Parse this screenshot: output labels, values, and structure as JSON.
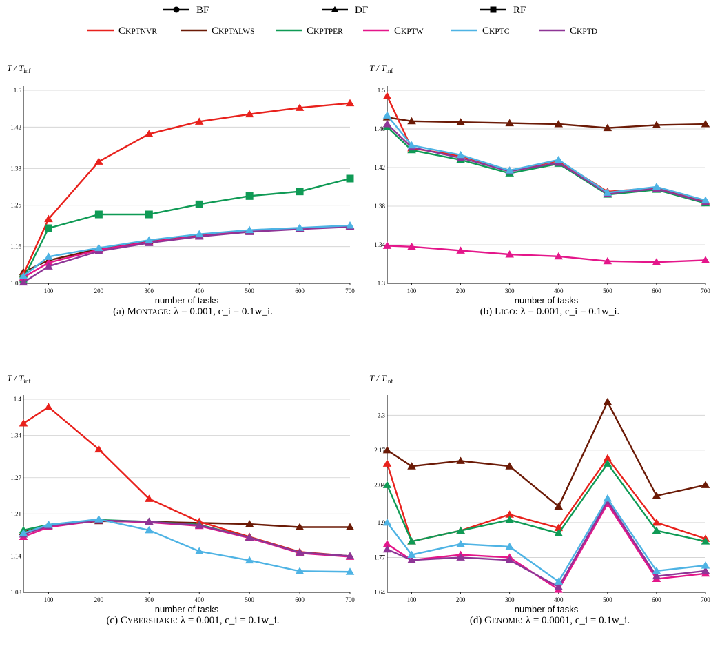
{
  "legend": {
    "markers": [
      {
        "name": "BF",
        "marker": "circle"
      },
      {
        "name": "DF",
        "marker": "triangle"
      },
      {
        "name": "RF",
        "marker": "square"
      }
    ],
    "colors": [
      {
        "name": "CkptNvr",
        "color": "#e8211c"
      },
      {
        "name": "CkptAlws",
        "color": "#6b1a06"
      },
      {
        "name": "CkptPer",
        "color": "#0f9a55"
      },
      {
        "name": "CkptW",
        "color": "#e4168a"
      },
      {
        "name": "CkptC",
        "color": "#4eb3e4"
      },
      {
        "name": "CkptD",
        "color": "#8e3596"
      }
    ]
  },
  "chart_data": [
    {
      "type": "line",
      "caption": "(a) Montage: λ = 0.001, c_i = 0.1w_i.",
      "ylabel": "T / T_inf",
      "xlabel": "number of tasks",
      "x": [
        50,
        100,
        200,
        300,
        400,
        500,
        600,
        700
      ],
      "xticks": [
        100,
        200,
        300,
        400,
        500,
        600,
        700
      ],
      "ylim": [
        1.08,
        1.5
      ],
      "yticks": [
        "1.08",
        "1.16",
        "1.25",
        "1.33",
        "1.42",
        "1.5"
      ],
      "grid": true,
      "series": [
        {
          "name": "CkptAlws",
          "marker": "triangle",
          "values": [
            1.105,
            1.13,
            1.155,
            1.172,
            1.185,
            1.195,
            1.2,
            1.205
          ]
        },
        {
          "name": "CkptNvr",
          "marker": "triangle",
          "values": [
            1.1,
            1.22,
            1.345,
            1.405,
            1.432,
            1.448,
            1.462,
            1.472
          ]
        },
        {
          "name": "CkptPer",
          "marker": "square",
          "values": [
            1.09,
            1.2,
            1.23,
            1.23,
            1.252,
            1.27,
            1.28,
            1.308
          ]
        },
        {
          "name": "CkptW",
          "marker": "triangle",
          "values": [
            1.093,
            1.125,
            1.153,
            1.17,
            1.183,
            1.193,
            1.199,
            1.204
          ]
        },
        {
          "name": "CkptD",
          "marker": "triangle",
          "values": [
            1.082,
            1.117,
            1.15,
            1.168,
            1.182,
            1.192,
            1.198,
            1.203
          ]
        },
        {
          "name": "CkptC",
          "marker": "triangle",
          "values": [
            1.096,
            1.138,
            1.157,
            1.174,
            1.187,
            1.196,
            1.201,
            1.206
          ]
        }
      ]
    },
    {
      "type": "line",
      "caption": "(b) Ligo: λ = 0.001, c_i = 0.1w_i.",
      "ylabel": "T / T_inf",
      "xlabel": "number of tasks",
      "x": [
        50,
        100,
        200,
        300,
        400,
        500,
        600,
        700
      ],
      "xticks": [
        100,
        200,
        300,
        400,
        500,
        600,
        700
      ],
      "ylim": [
        1.3,
        1.5
      ],
      "yticks": [
        "1.3",
        "1.34",
        "1.38",
        "1.42",
        "1.46",
        "1.5"
      ],
      "grid": true,
      "series": [
        {
          "name": "CkptAlws",
          "marker": "triangle",
          "values": [
            1.472,
            1.468,
            1.467,
            1.466,
            1.465,
            1.461,
            1.464,
            1.465
          ]
        },
        {
          "name": "CkptNvr",
          "marker": "triangle",
          "values": [
            1.494,
            1.44,
            1.432,
            1.417,
            1.427,
            1.395,
            1.399,
            1.385
          ]
        },
        {
          "name": "CkptPer",
          "marker": "triangle",
          "values": [
            1.462,
            1.438,
            1.428,
            1.414,
            1.424,
            1.392,
            1.397,
            1.383
          ]
        },
        {
          "name": "CkptW",
          "marker": "triangle",
          "values": [
            1.339,
            1.338,
            1.334,
            1.33,
            1.328,
            1.323,
            1.322,
            1.324
          ]
        },
        {
          "name": "CkptD",
          "marker": "triangle",
          "values": [
            1.465,
            1.441,
            1.43,
            1.416,
            1.425,
            1.393,
            1.398,
            1.384
          ]
        },
        {
          "name": "CkptC",
          "marker": "triangle",
          "values": [
            1.474,
            1.443,
            1.433,
            1.417,
            1.428,
            1.394,
            1.4,
            1.386
          ]
        }
      ]
    },
    {
      "type": "line",
      "caption": "(c) CyberShake: λ = 0.001, c_i = 0.1w_i.",
      "ylabel": "T / T_inf",
      "xlabel": "number of tasks",
      "x": [
        50,
        100,
        200,
        300,
        400,
        500,
        600,
        700
      ],
      "xticks": [
        100,
        200,
        300,
        400,
        500,
        600,
        700
      ],
      "ylim": [
        1.08,
        1.4
      ],
      "yticks": [
        "1.08",
        "1.14",
        "1.21",
        "1.27",
        "1.34",
        "1.4"
      ],
      "grid": true,
      "series": [
        {
          "name": "CkptAlws",
          "marker": "triangle",
          "values": [
            1.18,
            1.19,
            1.198,
            1.197,
            1.195,
            1.193,
            1.188,
            1.188
          ]
        },
        {
          "name": "CkptNvr",
          "marker": "triangle",
          "values": [
            1.36,
            1.387,
            1.317,
            1.235,
            1.197,
            1.172,
            1.147,
            1.14
          ]
        },
        {
          "name": "CkptPer",
          "marker": "triangle",
          "values": [
            1.183,
            1.192,
            1.2,
            1.197,
            1.192,
            1.171,
            1.146,
            1.14
          ]
        },
        {
          "name": "CkptW",
          "marker": "triangle",
          "values": [
            1.172,
            1.188,
            1.199,
            1.196,
            1.19,
            1.17,
            1.145,
            1.139
          ]
        },
        {
          "name": "CkptD",
          "marker": "triangle",
          "values": [
            1.176,
            1.19,
            1.199,
            1.197,
            1.191,
            1.171,
            1.146,
            1.14
          ]
        },
        {
          "name": "CkptC",
          "marker": "triangle",
          "values": [
            1.178,
            1.192,
            1.201,
            1.183,
            1.148,
            1.133,
            1.115,
            1.114
          ]
        }
      ]
    },
    {
      "type": "line",
      "caption": "(d) Genome: λ = 0.0001, c_i = 0.1w_i.",
      "ylabel": "T / T_inf",
      "xlabel": "number of tasks",
      "x": [
        50,
        100,
        200,
        300,
        400,
        500,
        600,
        700
      ],
      "xticks": [
        100,
        200,
        300,
        400,
        500,
        600,
        700
      ],
      "ylim": [
        1.64,
        2.36
      ],
      "yticks": [
        "1.64",
        "1.77",
        "1.9",
        "2.04",
        "2.17",
        "2.3"
      ],
      "grid": true,
      "series": [
        {
          "name": "CkptAlws",
          "marker": "triangle",
          "values": [
            2.17,
            2.11,
            2.13,
            2.11,
            1.96,
            2.35,
            2.0,
            2.04
          ]
        },
        {
          "name": "CkptNvr",
          "marker": "triangle",
          "values": [
            2.12,
            1.83,
            1.87,
            1.93,
            1.88,
            2.14,
            1.9,
            1.84
          ]
        },
        {
          "name": "CkptPer",
          "marker": "triangle",
          "values": [
            2.04,
            1.83,
            1.87,
            1.91,
            1.86,
            2.12,
            1.87,
            1.83
          ]
        },
        {
          "name": "CkptW",
          "marker": "triangle",
          "values": [
            1.82,
            1.76,
            1.78,
            1.77,
            1.65,
            1.97,
            1.69,
            1.71
          ]
        },
        {
          "name": "CkptD",
          "marker": "triangle",
          "values": [
            1.8,
            1.76,
            1.77,
            1.76,
            1.66,
            1.98,
            1.7,
            1.72
          ]
        },
        {
          "name": "CkptC",
          "marker": "triangle",
          "values": [
            1.9,
            1.78,
            1.82,
            1.81,
            1.68,
            1.99,
            1.72,
            1.74
          ]
        }
      ]
    }
  ]
}
